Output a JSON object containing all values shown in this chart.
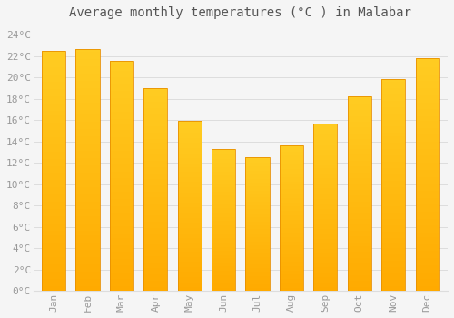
{
  "title": "Average monthly temperatures (°C ) in Malabar",
  "months": [
    "Jan",
    "Feb",
    "Mar",
    "Apr",
    "May",
    "Jun",
    "Jul",
    "Aug",
    "Sep",
    "Oct",
    "Nov",
    "Dec"
  ],
  "values": [
    22.5,
    22.6,
    21.5,
    19.0,
    15.9,
    13.3,
    12.5,
    13.6,
    15.7,
    18.2,
    19.8,
    21.8
  ],
  "bar_color_top": "#FFC200",
  "bar_color_bottom": "#FFAA00",
  "bar_edge_color": "#E89000",
  "bar_width": 0.7,
  "ylim": [
    0,
    25
  ],
  "ytick_values": [
    0,
    2,
    4,
    6,
    8,
    10,
    12,
    14,
    16,
    18,
    20,
    22,
    24
  ],
  "background_color": "#f5f5f5",
  "plot_bg_color": "#f5f5f5",
  "grid_color": "#dddddd",
  "title_fontsize": 10,
  "tick_fontsize": 8,
  "tick_label_color": "#999999",
  "title_color": "#555555",
  "font_family": "monospace"
}
